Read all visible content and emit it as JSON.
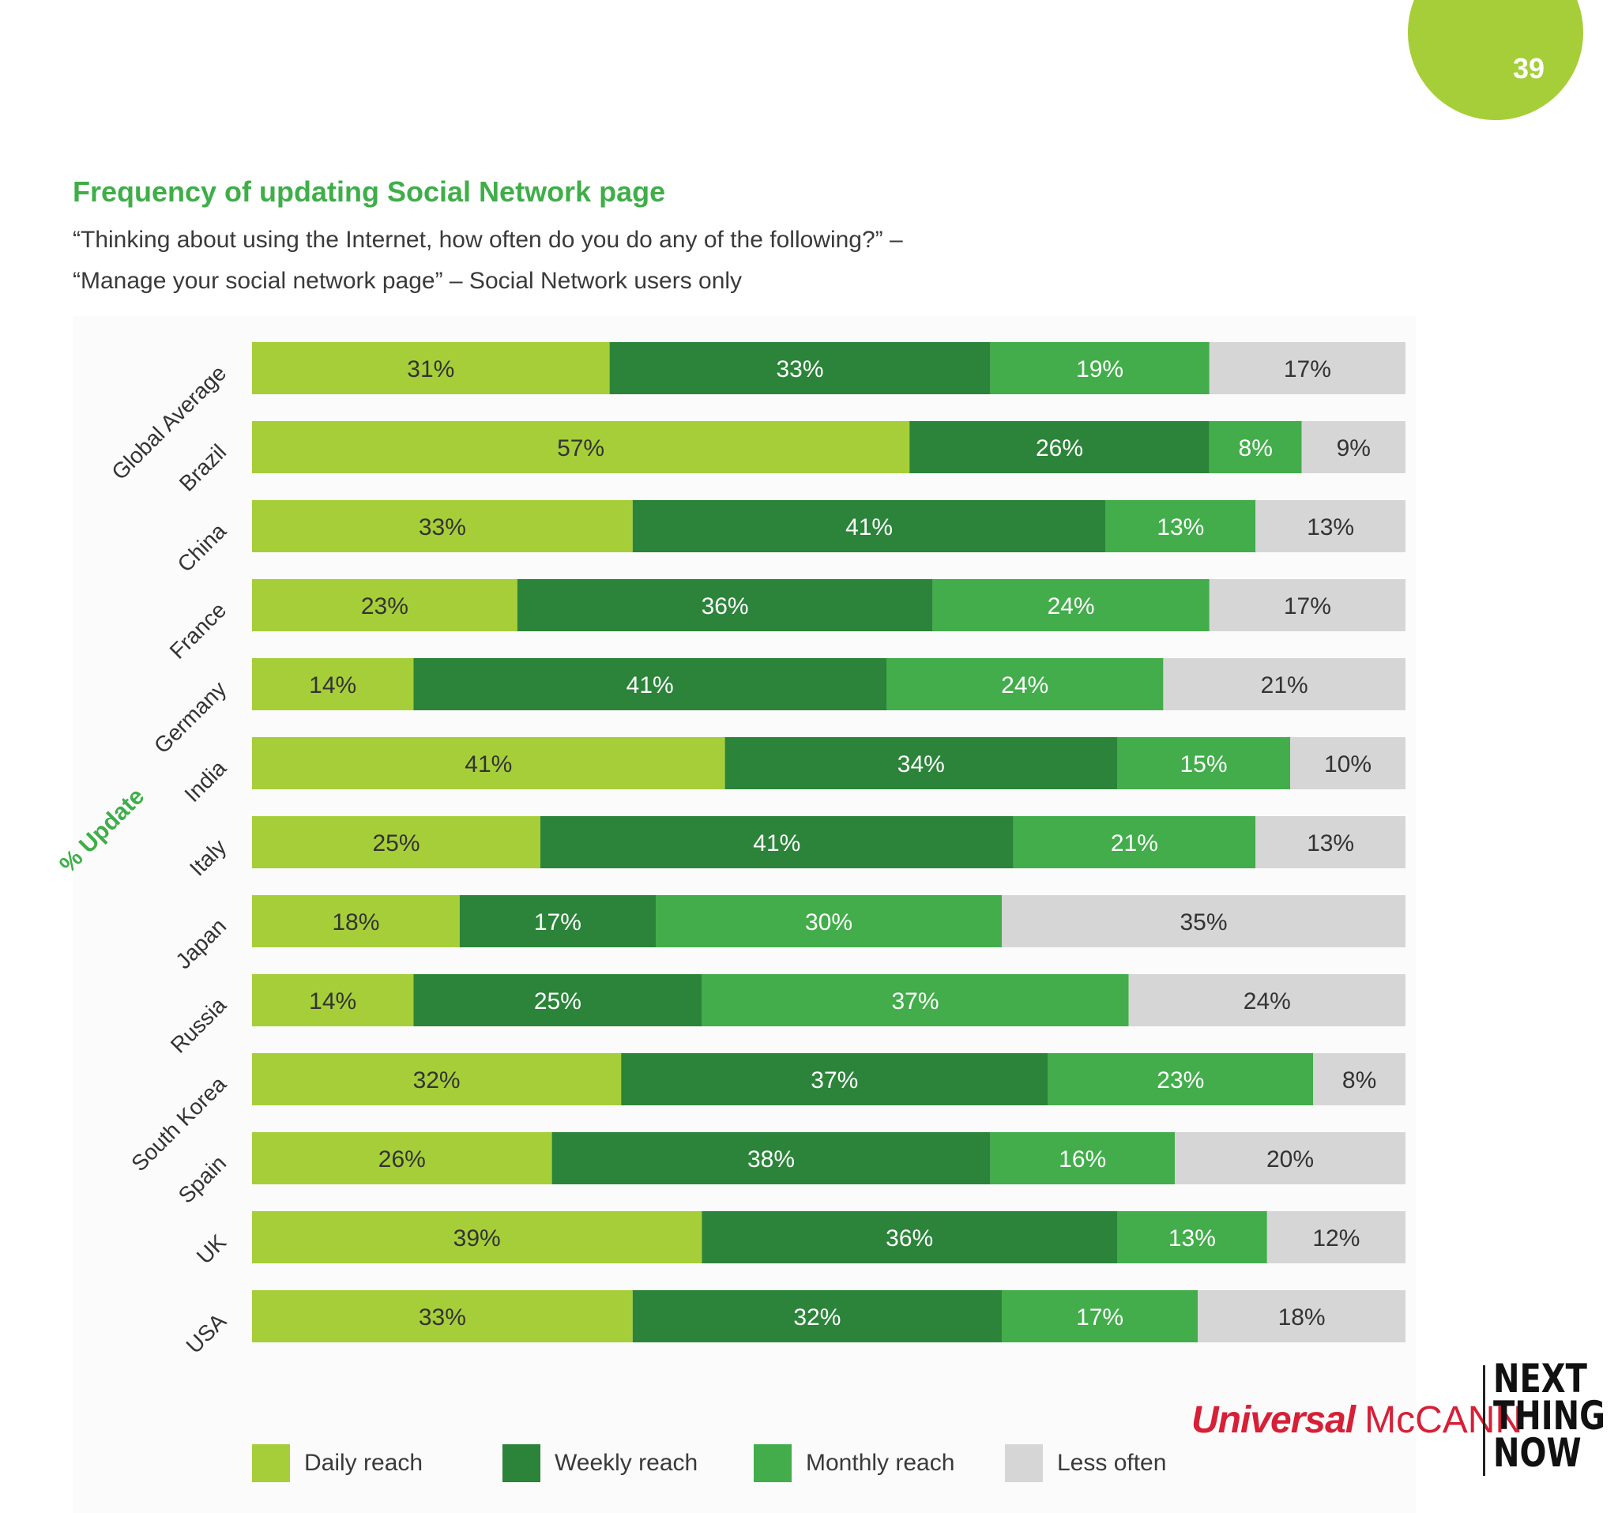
{
  "page": {
    "number": "39"
  },
  "header": {
    "title": "Frequency of updating Social Network page",
    "subtitle_line1": "“Thinking about using the Internet, how often do you do any of the following?” –",
    "subtitle_line2": "“Manage your social network page” – Social Network users only"
  },
  "colors": {
    "daily": "#a6ce39",
    "weekly": "#2b8439",
    "monthly": "#42ad4a",
    "less": "#d6d6d6",
    "title": "#3fae49",
    "badge": "#a6ce39",
    "brand_red": "#d71f36"
  },
  "chart_data": {
    "type": "bar",
    "orientation": "horizontal",
    "stacked": true,
    "title": "Frequency of updating Social Network page",
    "ylabel": "% Update",
    "xlabel": "",
    "xlim": [
      0,
      100
    ],
    "categories": [
      "Global Average",
      "Brazil",
      "China",
      "France",
      "Germany",
      "India",
      "Italy",
      "Japan",
      "Russia",
      "South Korea",
      "Spain",
      "UK",
      "USA"
    ],
    "series": [
      {
        "name": "Daily reach",
        "color": "#a6ce39",
        "values": [
          31,
          57,
          33,
          23,
          14,
          41,
          25,
          18,
          14,
          32,
          26,
          39,
          33
        ]
      },
      {
        "name": "Weekly reach",
        "color": "#2b8439",
        "values": [
          33,
          26,
          41,
          36,
          41,
          34,
          41,
          17,
          25,
          37,
          38,
          36,
          32
        ]
      },
      {
        "name": "Monthly reach",
        "color": "#42ad4a",
        "values": [
          19,
          8,
          13,
          24,
          24,
          15,
          21,
          30,
          37,
          23,
          16,
          13,
          17
        ]
      },
      {
        "name": "Less often",
        "color": "#d6d6d6",
        "values": [
          17,
          9,
          13,
          17,
          21,
          10,
          13,
          35,
          24,
          8,
          20,
          12,
          18
        ]
      }
    ],
    "legend_position": "bottom",
    "grid": false
  },
  "legend": [
    {
      "label": "Daily reach",
      "color": "#a6ce39"
    },
    {
      "label": "Weekly reach",
      "color": "#2b8439"
    },
    {
      "label": "Monthly reach",
      "color": "#42ad4a"
    },
    {
      "label": "Less often",
      "color": "#d6d6d6"
    }
  ],
  "branding": {
    "um_italic": "Universal",
    "um_caps": "McCANN",
    "tagline": [
      "NEXT",
      "THING",
      "NOW"
    ]
  }
}
